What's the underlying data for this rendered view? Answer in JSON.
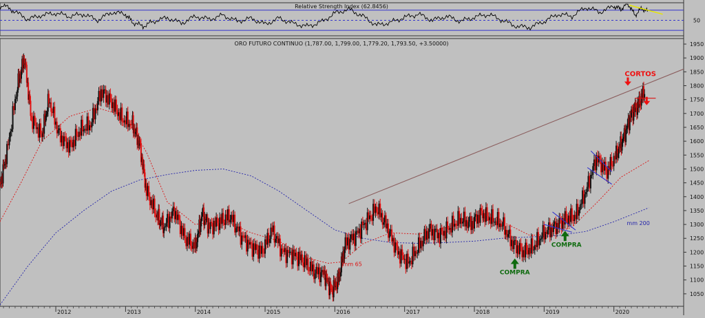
{
  "chart_data": [
    {
      "type": "line",
      "panel": "indicator",
      "title": "Relative Strength Index (62.8456)",
      "yticks": [
        50
      ],
      "ylim": [
        22,
        82
      ],
      "levels": [
        {
          "value": 70,
          "color": "#3333cc"
        },
        {
          "value": 30,
          "color": "#3333cc"
        },
        {
          "value": 50,
          "color": "#3333cc",
          "dashed": true
        }
      ],
      "series": [
        {
          "color": "#000000",
          "x": [
            2011.0,
            2011.1,
            2011.25,
            2011.4,
            2011.6,
            2011.8,
            2012.0,
            2012.2,
            2012.4,
            2012.6,
            2012.8,
            2013.0,
            2013.1,
            2013.25,
            2013.4,
            2013.6,
            2013.8,
            2014.0,
            2014.2,
            2014.4,
            2014.6,
            2014.8,
            2015.0,
            2015.2,
            2015.4,
            2015.6,
            2015.8,
            2016.0,
            2016.2,
            2016.4,
            2016.6,
            2016.8,
            2017.0,
            2017.2,
            2017.4,
            2017.6,
            2017.8,
            2018.0,
            2018.2,
            2018.4,
            2018.6,
            2018.8,
            2019.0,
            2019.2,
            2019.4,
            2019.6,
            2019.8,
            2020.0,
            2020.1,
            2020.2,
            2020.3,
            2020.4,
            2020.5
          ],
          "values": [
            58,
            72,
            80,
            68,
            52,
            60,
            64,
            58,
            62,
            50,
            66,
            62,
            46,
            38,
            48,
            55,
            44,
            58,
            52,
            60,
            48,
            54,
            42,
            54,
            44,
            38,
            46,
            64,
            72,
            58,
            40,
            46,
            56,
            62,
            50,
            58,
            48,
            56,
            62,
            50,
            38,
            36,
            48,
            62,
            58,
            76,
            66,
            78,
            72,
            84,
            60,
            74,
            66
          ]
        }
      ]
    },
    {
      "type": "line",
      "title": "ORO FUTURO CONTINUO (1,787.00, 1,799.00, 1,779.20, 1,793.50, +3.50000)",
      "xticks": [
        "2012",
        "2013",
        "2014",
        "2015",
        "2016",
        "2017",
        "2018",
        "2019",
        "2020"
      ],
      "yticks": [
        1050,
        1100,
        1150,
        1200,
        1250,
        1300,
        1350,
        1400,
        1450,
        1500,
        1550,
        1600,
        1650,
        1700,
        1750,
        1800,
        1850,
        1900,
        1950
      ],
      "xlim": [
        2011.2,
        2021.0
      ],
      "ylim": [
        1010,
        1960
      ],
      "series": [
        {
          "name": "mm 65",
          "color": "#dd1111",
          "dashed": true,
          "x": [
            2011.2,
            2011.5,
            2011.8,
            2012.2,
            2012.6,
            2013.0,
            2013.3,
            2013.6,
            2014.0,
            2014.4,
            2014.8,
            2015.2,
            2015.6,
            2015.9,
            2016.1,
            2016.4,
            2016.8,
            2017.2,
            2017.6,
            2018.0,
            2018.4,
            2018.8,
            2019.1,
            2019.4,
            2019.8,
            2020.1,
            2020.5
          ],
          "values": [
            1310,
            1450,
            1600,
            1690,
            1720,
            1690,
            1560,
            1380,
            1300,
            1315,
            1270,
            1240,
            1180,
            1160,
            1165,
            1230,
            1270,
            1265,
            1290,
            1320,
            1310,
            1260,
            1265,
            1290,
            1390,
            1470,
            1530
          ]
        },
        {
          "name": "mm 200",
          "color": "#2222aa",
          "dashed": true,
          "x": [
            2011.2,
            2011.6,
            2012.0,
            2012.4,
            2012.8,
            2013.2,
            2013.6,
            2014.0,
            2014.4,
            2014.8,
            2015.2,
            2015.6,
            2016.0,
            2016.4,
            2016.8,
            2017.2,
            2017.6,
            2018.0,
            2018.4,
            2018.8,
            2019.2,
            2019.6,
            2020.0,
            2020.5
          ],
          "values": [
            1010,
            1150,
            1270,
            1350,
            1420,
            1460,
            1480,
            1495,
            1500,
            1475,
            1420,
            1350,
            1280,
            1250,
            1235,
            1232,
            1235,
            1240,
            1250,
            1255,
            1260,
            1275,
            1310,
            1360
          ]
        },
        {
          "name": "",
          "color": "#111111",
          "candles": true,
          "x": [
            2011.2,
            2011.3,
            2011.45,
            2011.55,
            2011.65,
            2011.8,
            2011.9,
            2012.05,
            2012.2,
            2012.35,
            2012.5,
            2012.65,
            2012.8,
            2012.95,
            2013.1,
            2013.2,
            2013.3,
            2013.45,
            2013.55,
            2013.7,
            2013.85,
            2014.0,
            2014.1,
            2014.2,
            2014.35,
            2014.5,
            2014.65,
            2014.8,
            2014.95,
            2015.1,
            2015.25,
            2015.4,
            2015.55,
            2015.7,
            2015.85,
            2015.95,
            2016.05,
            2016.15,
            2016.3,
            2016.45,
            2016.6,
            2016.75,
            2016.9,
            2017.05,
            2017.2,
            2017.35,
            2017.5,
            2017.65,
            2017.8,
            2017.95,
            2018.1,
            2018.25,
            2018.4,
            2018.55,
            2018.7,
            2018.85,
            2019.0,
            2019.15,
            2019.3,
            2019.45,
            2019.6,
            2019.75,
            2019.9,
            2020.05,
            2020.15,
            2020.25,
            2020.35,
            2020.45
          ],
          "values": [
            1440,
            1560,
            1800,
            1900,
            1680,
            1620,
            1750,
            1620,
            1580,
            1640,
            1660,
            1780,
            1740,
            1680,
            1660,
            1590,
            1420,
            1330,
            1290,
            1350,
            1250,
            1220,
            1340,
            1290,
            1310,
            1330,
            1260,
            1220,
            1200,
            1280,
            1200,
            1190,
            1170,
            1130,
            1120,
            1060,
            1100,
            1230,
            1260,
            1310,
            1360,
            1290,
            1200,
            1160,
            1220,
            1280,
            1260,
            1290,
            1320,
            1300,
            1340,
            1320,
            1300,
            1230,
            1200,
            1220,
            1270,
            1290,
            1320,
            1330,
            1420,
            1540,
            1490,
            1560,
            1620,
            1700,
            1730,
            1790
          ]
        }
      ],
      "trendlines": [
        {
          "color": "#8b5e5e",
          "points": [
            [
              2016.2,
              1375
            ],
            [
              2021.0,
              1860
            ]
          ]
        },
        {
          "color": "#3333cc",
          "points": [
            [
              2019.12,
              1345
            ],
            [
              2019.45,
              1280
            ]
          ]
        },
        {
          "color": "#3333cc",
          "points": [
            [
              2019.0,
              1300
            ],
            [
              2019.4,
              1272
            ]
          ]
        },
        {
          "color": "#3333cc",
          "points": [
            [
              2019.67,
              1565
            ],
            [
              2019.97,
              1490
            ]
          ]
        },
        {
          "color": "#3333cc",
          "points": [
            [
              2019.62,
              1505
            ],
            [
              2019.97,
              1445
            ]
          ]
        },
        {
          "color": "#dd1111",
          "points": [
            [
              2020.3,
              1755
            ],
            [
              2020.6,
              1755
            ]
          ]
        }
      ],
      "annotations": [
        {
          "text": "CORTOS",
          "x": 2020.38,
          "y": 1835,
          "color": "#ee1111"
        },
        {
          "text": "COMPRA",
          "x": 2019.32,
          "y": 1220,
          "color": "#0f6b0f"
        },
        {
          "text": "COMPRA",
          "x": 2018.58,
          "y": 1120,
          "color": "#0f6b0f"
        },
        {
          "text": "mm 65",
          "x": 2016.25,
          "y": 1150,
          "color": "#dd1111"
        },
        {
          "text": "mm 200",
          "x": 2020.35,
          "y": 1298,
          "color": "#2222aa"
        }
      ],
      "arrows": [
        {
          "kind": "down",
          "color": "#ee1111",
          "x": 2020.2,
          "y": 1805
        },
        {
          "kind": "down",
          "color": "#ee1111",
          "x": 2020.47,
          "y": 1735
        },
        {
          "kind": "up",
          "color": "#0f6b0f",
          "x": 2019.3,
          "y": 1260
        },
        {
          "kind": "up",
          "color": "#0f6b0f",
          "x": 2018.58,
          "y": 1160
        }
      ]
    }
  ]
}
